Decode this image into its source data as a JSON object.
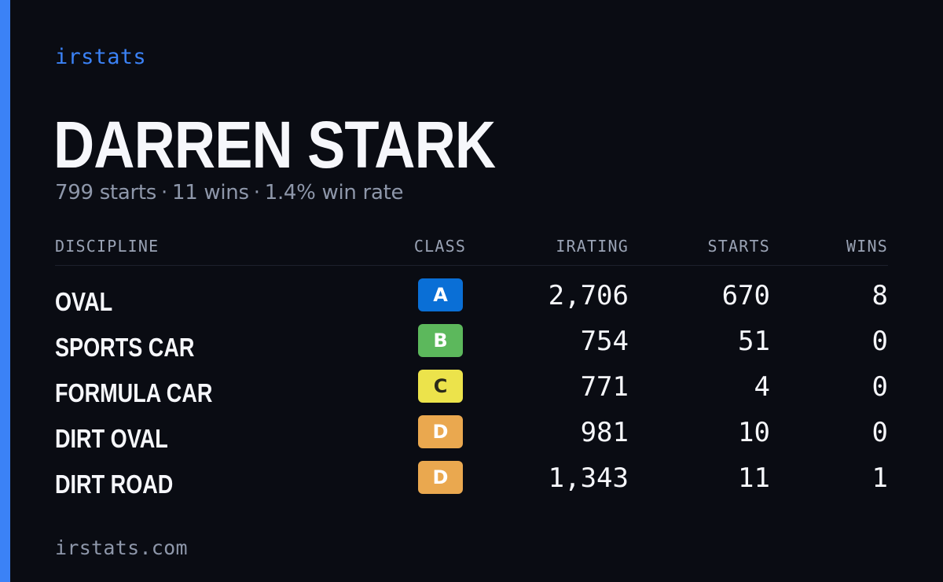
{
  "brand": {
    "name": "irstats",
    "color": "#3b82f6"
  },
  "driver": {
    "name": "DARREN STARK"
  },
  "summary": {
    "starts": "799 starts",
    "wins": "11 wins",
    "win_rate": "1.4% win rate",
    "separator": "·"
  },
  "table": {
    "headers": {
      "discipline": "DISCIPLINE",
      "class": "CLASS",
      "irating": "IRATING",
      "starts": "STARTS",
      "wins": "WINS"
    },
    "rows": [
      {
        "discipline": "OVAL",
        "class": "A",
        "irating": "2,706",
        "starts": "670",
        "wins": "8"
      },
      {
        "discipline": "SPORTS CAR",
        "class": "B",
        "irating": "754",
        "starts": "51",
        "wins": "0"
      },
      {
        "discipline": "FORMULA CAR",
        "class": "C",
        "irating": "771",
        "starts": "4",
        "wins": "0"
      },
      {
        "discipline": "DIRT OVAL",
        "class": "D",
        "irating": "981",
        "starts": "10",
        "wins": "0"
      },
      {
        "discipline": "DIRT ROAD",
        "class": "D",
        "irating": "1,343",
        "starts": "11",
        "wins": "1"
      }
    ]
  },
  "class_colors": {
    "A": {
      "bg": "#0a6fd6",
      "fg": "#ffffff"
    },
    "B": {
      "bg": "#5cb85c",
      "fg": "#ffffff"
    },
    "C": {
      "bg": "#ece34b",
      "fg": "#2a2a1a"
    },
    "D": {
      "bg": "#eaa84f",
      "fg": "#ffffff"
    }
  },
  "footer": {
    "url": "irstats.com"
  },
  "colors": {
    "background": "#0a0c13",
    "accent": "#3b82f6",
    "muted": "#8e97aa",
    "header_text": "#9aa3b5"
  }
}
